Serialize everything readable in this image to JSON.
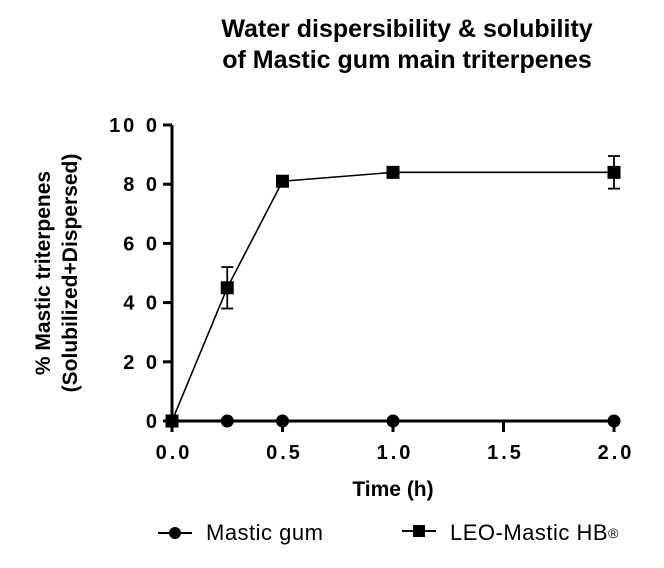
{
  "chart_data": {
    "type": "line",
    "title": "Water dispersibility & solubility of Mastic gum main triterpenes",
    "title_lines": [
      "Water dispersibility & solubility",
      "of Mastic gum main triterpenes"
    ],
    "xlabel": "Time (h)",
    "ylabel_lines": [
      "% Mastic triterpenes",
      "(Solubilized+Dispersed)"
    ],
    "ylabel": "% Mastic triterpenes (Solubilized+Dispersed)",
    "xlim": [
      0,
      2.0
    ],
    "ylim": [
      0,
      100
    ],
    "x_ticks": [
      "0.0",
      "0.5",
      "1.0",
      "1.5",
      "2.0"
    ],
    "y_ticks": [
      "0",
      "2 0",
      "4 0",
      "6 0",
      "8 0",
      "10 0"
    ],
    "grid": false,
    "legend_position": "bottom",
    "series": [
      {
        "name": "Mastic gum",
        "marker": "circle",
        "x": [
          0,
          0.25,
          0.5,
          1.0,
          2.0
        ],
        "values": [
          0,
          0,
          0,
          0,
          0
        ],
        "error": [
          0,
          0,
          0,
          0,
          0
        ]
      },
      {
        "name": "LEO-Mastic HB®",
        "marker": "square",
        "x": [
          0,
          0.25,
          0.5,
          1.0,
          2.0
        ],
        "values": [
          0,
          45,
          81,
          84,
          84
        ],
        "error": [
          0,
          7,
          0,
          0,
          5.5
        ]
      }
    ]
  },
  "legend": {
    "items": [
      {
        "label": "Mastic gum",
        "sup": ""
      },
      {
        "label": "LEO-Mastic HB",
        "sup": "®"
      }
    ]
  }
}
